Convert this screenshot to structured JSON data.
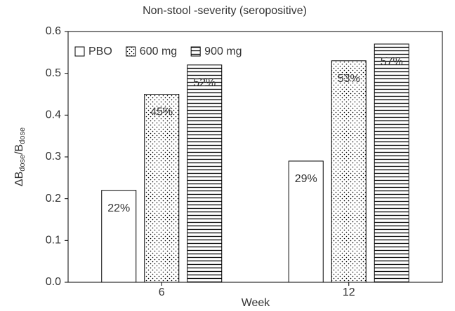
{
  "chart_data": {
    "type": "bar",
    "title": "Non-stool -severity (seropositive)",
    "x_label": "Week",
    "y_label": [
      "ΔB",
      "dose",
      "/B",
      "dose"
    ],
    "categories": [
      "6",
      "12"
    ],
    "series": [
      {
        "name": "PBO",
        "color": "#000000",
        "pattern": "none",
        "values": [
          0.22,
          0.29
        ],
        "value_labels": [
          "22%",
          "29%"
        ]
      },
      {
        "name": "600 mg",
        "color": "#000000",
        "pattern": "dots",
        "values": [
          0.45,
          0.53
        ],
        "value_labels": [
          "45%",
          "53%"
        ]
      },
      {
        "name": "900 mg",
        "color": "#000000",
        "pattern": "hlines",
        "values": [
          0.52,
          0.57
        ],
        "value_labels": [
          "52%",
          "57%"
        ]
      }
    ],
    "ylim": [
      0,
      0.6
    ],
    "yticks": [
      {
        "value": 0,
        "label": "0.0"
      },
      0.1,
      0.2,
      0.3,
      0.4,
      0.5,
      0.6
    ],
    "grid": false,
    "legend": "top-left"
  }
}
